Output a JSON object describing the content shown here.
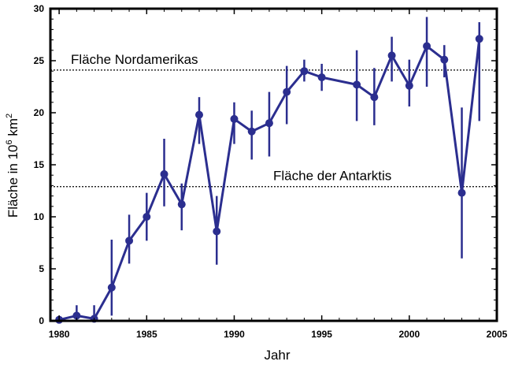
{
  "chart_data": {
    "type": "line",
    "title": "",
    "xlabel": "Jahr",
    "ylabel": {
      "prefix": "Fläche in 10",
      "sup1": "6",
      "mid": " km",
      "sup2": "2"
    },
    "xlim": [
      1979.5,
      2005
    ],
    "ylim": [
      0,
      30
    ],
    "xticks": [
      1980,
      1985,
      1990,
      1995,
      2000,
      2005
    ],
    "yticks": [
      0,
      5,
      10,
      15,
      20,
      25,
      30
    ],
    "grid": false,
    "colors": {
      "series": "#2b2e8f",
      "reference": "#000000"
    },
    "reference_lines": [
      {
        "label": "Fläche Nordamerikas",
        "y": 24.1
      },
      {
        "label": "Fläche der Antarktis",
        "y": 12.9
      }
    ],
    "series": [
      {
        "x": [
          1980,
          1981,
          1982,
          1983,
          1984,
          1985,
          1986,
          1987,
          1988,
          1989,
          1990,
          1991,
          1992,
          1993,
          1994,
          1995,
          1997,
          1998,
          1999,
          2000,
          2001,
          2002,
          2003,
          2004
        ],
        "y": [
          0.1,
          0.5,
          0.2,
          3.2,
          7.7,
          10.0,
          14.1,
          11.2,
          19.8,
          8.6,
          19.4,
          18.2,
          19.0,
          22.0,
          24.0,
          23.4,
          22.7,
          21.5,
          25.5,
          22.6,
          26.4,
          25.1,
          12.3,
          27.1
        ],
        "err_low": [
          0.0,
          0.0,
          0.0,
          0.5,
          5.5,
          7.7,
          11.0,
          8.7,
          17.0,
          5.4,
          17.0,
          15.5,
          15.8,
          18.9,
          23.0,
          22.1,
          19.2,
          18.8,
          23.0,
          20.6,
          22.5,
          23.4,
          6.0,
          19.2
        ],
        "err_high": [
          0.0,
          1.5,
          1.5,
          7.8,
          10.2,
          12.3,
          17.5,
          13.2,
          21.5,
          12.0,
          21.0,
          20.2,
          22.0,
          24.5,
          25.1,
          24.7,
          26.0,
          24.3,
          27.3,
          25.1,
          29.2,
          26.5,
          20.5,
          28.7
        ]
      }
    ]
  }
}
